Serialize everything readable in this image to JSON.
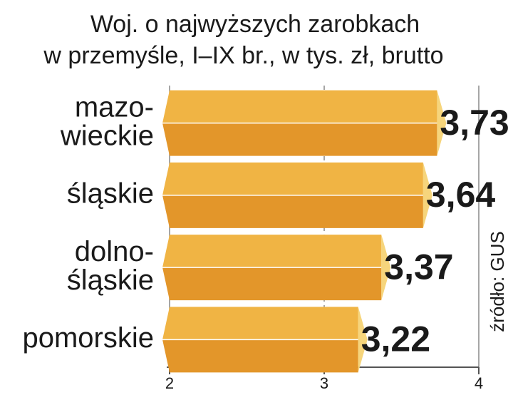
{
  "chart_data": {
    "type": "bar",
    "orientation": "horizontal",
    "title": [
      "Woj. o najwyższych zarobkach",
      "w przemyśle, I–IX br., w tys. zł, brutto"
    ],
    "categories": [
      "mazo-\nwieckie",
      "śląskie",
      "dolno-\nśląskie",
      "pomorskie"
    ],
    "values": [
      3.73,
      3.64,
      3.37,
      3.22
    ],
    "value_labels": [
      "3,73",
      "3,64",
      "3,37",
      "3,22"
    ],
    "color": "#f0b444",
    "xlim": [
      2,
      4
    ],
    "xticks": [
      2,
      3,
      4
    ],
    "grid": true,
    "source": "źródło: GUS"
  }
}
